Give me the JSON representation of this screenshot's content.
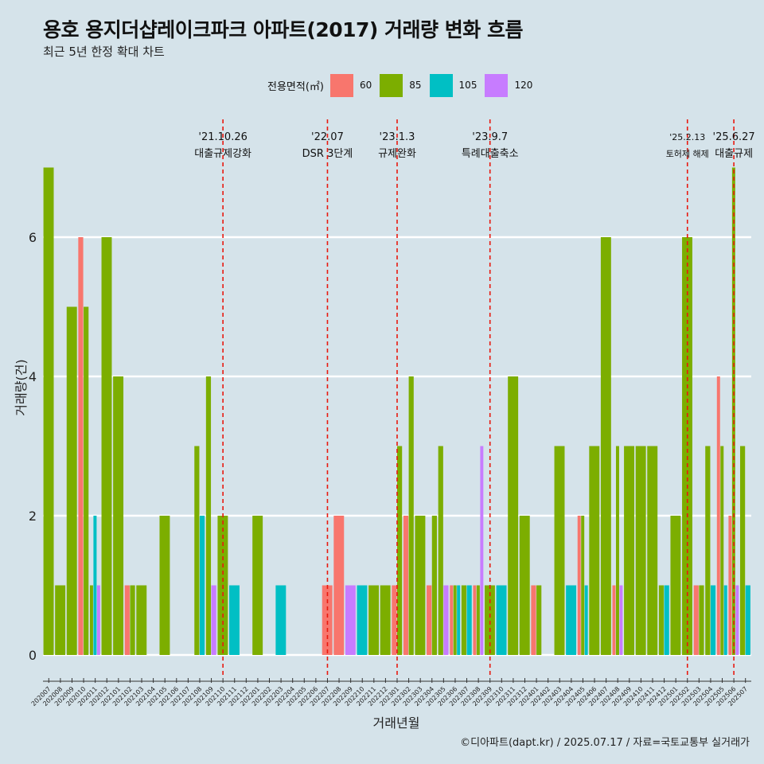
{
  "title": "용호 용지더샵레이크파크 아파트(2017) 거래량 변화 흐름",
  "subtitle": "최근 5년 한정 확대 차트",
  "caption": "©디아파트(dapt.kr) / 2025.07.17 / 자료=국토교통부 실거래가",
  "legend": {
    "title": "전용면적(㎡)",
    "items": [
      {
        "label": "60",
        "color": "#f8766d"
      },
      {
        "label": "85",
        "color": "#7cae00"
      },
      {
        "label": "105",
        "color": "#00bfc4"
      },
      {
        "label": "120",
        "color": "#c77cff"
      }
    ]
  },
  "chart_data": {
    "type": "bar",
    "xlabel": "거래년월",
    "ylabel": "거래량(건)",
    "ylim": [
      0,
      7
    ],
    "yticks": [
      0,
      2,
      4,
      6
    ],
    "grid": true,
    "categories": [
      "202007",
      "202008",
      "202009",
      "202010",
      "202011",
      "202012",
      "202101",
      "202102",
      "202103",
      "202104",
      "202105",
      "202106",
      "202107",
      "202108",
      "202109",
      "202110",
      "202111",
      "202112",
      "202201",
      "202202",
      "202203",
      "202204",
      "202205",
      "202206",
      "202207",
      "202208",
      "202209",
      "202210",
      "202211",
      "202212",
      "202301",
      "202302",
      "202303",
      "202304",
      "202305",
      "202306",
      "202307",
      "202308",
      "202309",
      "202310",
      "202311",
      "202312",
      "202401",
      "202402",
      "202403",
      "202404",
      "202405",
      "202406",
      "202407",
      "202408",
      "202409",
      "202410",
      "202411",
      "202412",
      "202501",
      "202502",
      "202503",
      "202504",
      "202505",
      "202506",
      "202507"
    ],
    "series": [
      {
        "name": "60",
        "values": [
          0,
          0,
          0,
          6,
          0,
          0,
          0,
          1,
          0,
          0,
          0,
          0,
          0,
          0,
          0,
          0,
          0,
          0,
          0,
          0,
          0,
          0,
          0,
          0,
          1,
          2,
          0,
          0,
          0,
          0,
          1,
          2,
          0,
          1,
          0,
          1,
          0,
          1,
          0,
          0,
          0,
          0,
          1,
          0,
          0,
          0,
          2,
          0,
          0,
          1,
          0,
          0,
          0,
          0,
          0,
          0,
          1,
          0,
          4,
          2,
          0
        ]
      },
      {
        "name": "85",
        "values": [
          7,
          1,
          5,
          5,
          1,
          6,
          4,
          1,
          1,
          0,
          2,
          0,
          0,
          3,
          4,
          2,
          0,
          0,
          2,
          0,
          0,
          0,
          0,
          0,
          0,
          0,
          0,
          0,
          1,
          1,
          3,
          4,
          2,
          2,
          3,
          1,
          1,
          1,
          1,
          0,
          4,
          2,
          1,
          0,
          3,
          0,
          2,
          3,
          6,
          3,
          3,
          3,
          3,
          1,
          2,
          6,
          1,
          3,
          3,
          7,
          3
        ]
      },
      {
        "name": "105",
        "values": [
          0,
          0,
          0,
          0,
          2,
          0,
          0,
          0,
          0,
          0,
          0,
          0,
          0,
          2,
          0,
          0,
          1,
          0,
          0,
          0,
          1,
          0,
          0,
          0,
          0,
          0,
          0,
          1,
          0,
          0,
          0,
          0,
          0,
          0,
          0,
          1,
          1,
          0,
          0,
          1,
          0,
          0,
          0,
          0,
          0,
          1,
          1,
          0,
          0,
          0,
          0,
          0,
          0,
          1,
          0,
          0,
          0,
          1,
          1,
          0,
          1
        ]
      },
      {
        "name": "120",
        "values": [
          0,
          0,
          0,
          0,
          1,
          0,
          0,
          0,
          0,
          0,
          0,
          0,
          0,
          0,
          1,
          0,
          0,
          0,
          0,
          0,
          0,
          0,
          0,
          0,
          0,
          0,
          1,
          0,
          0,
          0,
          0,
          0,
          0,
          0,
          1,
          0,
          0,
          3,
          0,
          0,
          0,
          0,
          0,
          0,
          0,
          0,
          0,
          0,
          0,
          1,
          0,
          0,
          0,
          0,
          0,
          0,
          0,
          0,
          0,
          1,
          0
        ]
      }
    ],
    "events": [
      {
        "category": "202110",
        "date": "'21.10.26",
        "label": "대출규제강화"
      },
      {
        "category": "202207",
        "date": "'22.07",
        "label": "DSR 3단계"
      },
      {
        "category": "202301",
        "date": "'23.1.3",
        "label": "규제완화"
      },
      {
        "category": "202309",
        "date": "'23.9.7",
        "label": "특례대출축소"
      },
      {
        "category": "202502",
        "date": "'25.2.13",
        "label": "토허제 해제"
      },
      {
        "category": "202506",
        "date": "'25.6.27",
        "label": "대출규제"
      }
    ]
  }
}
